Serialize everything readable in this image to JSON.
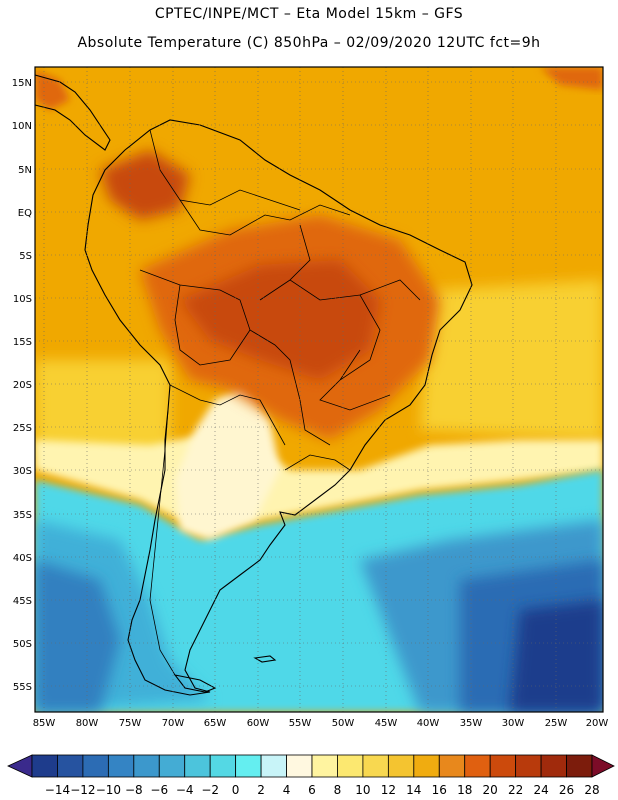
{
  "header": {
    "line1": "CPTEC/INPE/MCT –  Eta Model 15km – GFS",
    "line2": "Absolute Temperature (C) 850hPa – 02/09/2020 12UTC fct=9h"
  },
  "map": {
    "lat_ticks": [
      "15N",
      "10N",
      "5N",
      "EQ",
      "5S",
      "10S",
      "15S",
      "20S",
      "25S",
      "30S",
      "35S",
      "40S",
      "45S",
      "50S",
      "55S"
    ],
    "lon_ticks": [
      "85W",
      "80W",
      "75W",
      "70W",
      "65W",
      "60W",
      "55W",
      "50W",
      "45W",
      "40W",
      "35W",
      "30W",
      "25W",
      "20W"
    ],
    "colors": {
      "warm_ocean": "#f0a800",
      "hot_land": "#e06810",
      "very_hot": "#c84a10",
      "mild": "#f8d030",
      "cool_pale": "#fff8c0",
      "cold_cyan": "#50d8e8",
      "colder": "#40b0d8",
      "cold_blue": "#3080c0",
      "deep_blue": "#203c90"
    }
  },
  "colorbar": {
    "labels": [
      "-14",
      "-12",
      "-10",
      "-8",
      "-6",
      "-4",
      "-2",
      "0",
      "2",
      "4",
      "6",
      "8",
      "10",
      "12",
      "14",
      "16",
      "18",
      "20",
      "22",
      "24",
      "26",
      "28"
    ],
    "colors": [
      "#1e3c8c",
      "#2653a0",
      "#2c6cb4",
      "#3484c4",
      "#3c98cc",
      "#44acd4",
      "#4cc4dc",
      "#54d8e4",
      "#64eef0",
      "#c8f4f8",
      "#fff8e0",
      "#fff4a0",
      "#fce870",
      "#f8d850",
      "#f4c430",
      "#f0ac10",
      "#e8881c",
      "#e06010",
      "#cc4a0c",
      "#b83a0c",
      "#a02a0c",
      "#7c1c0c"
    ],
    "left_arrow": "#3a2a8c",
    "right_arrow": "#7c0c28"
  }
}
